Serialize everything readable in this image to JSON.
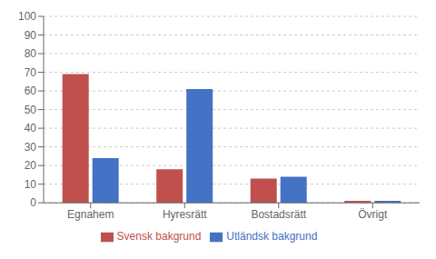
{
  "chart_data": {
    "type": "bar",
    "categories": [
      "Egnahem",
      "Hyresrätt",
      "Bostadsrätt",
      "Övrigt"
    ],
    "series": [
      {
        "name": "Svensk bakgrund",
        "color": "#c0504d",
        "values": [
          69,
          18,
          13,
          1
        ]
      },
      {
        "name": "Utländsk bakgrund",
        "color": "#4472c4",
        "values": [
          24,
          61,
          14,
          1
        ]
      }
    ],
    "ylim": [
      0,
      100
    ],
    "yticks": [
      0,
      10,
      20,
      30,
      40,
      50,
      60,
      70,
      80,
      90,
      100
    ],
    "grid": true,
    "legend": "bottom"
  }
}
